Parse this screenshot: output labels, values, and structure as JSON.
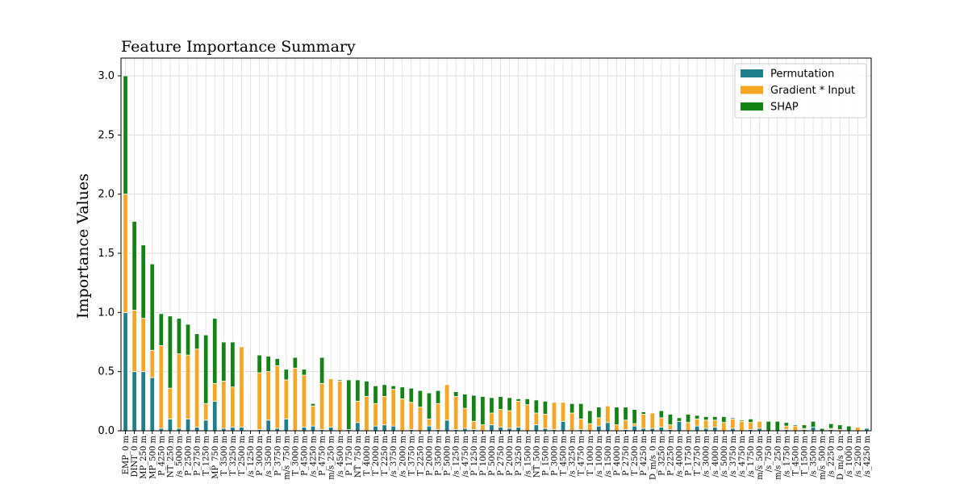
{
  "chart_data": {
    "type": "bar",
    "stacked": true,
    "title": "Feature Importance Summary",
    "ylabel": "Importance Values",
    "xlabel": "",
    "ylim": [
      0,
      3.15
    ],
    "yticks": [
      "0.0",
      "0.5",
      "1.0",
      "1.5",
      "2.0",
      "2.5",
      "3.0"
    ],
    "grid": true,
    "legend_position": "top-right",
    "categories": [
      "EMP_0 m",
      "DINT_0 m",
      "MP_250 m",
      "MP_500 m",
      "P_4250 m",
      "NT_250 m",
      "/s_5000 m",
      "P_2500 m",
      "P_2750 m",
      "T_1250 m",
      "MP_750 m",
      "T_3500 m",
      "T_3250 m",
      "T_2500 m",
      "/s_1250 m",
      "P_3000 m",
      "/s_3500 m",
      "P_3750 m",
      "m/s_750 m",
      "T_3000 m",
      "P_4500 m",
      "/s_4250 m",
      "P_4750 m",
      "m/s_250 m",
      "/s_4500 m",
      "P_1750 m",
      "NT_750 m",
      "T_4000 m",
      "T_2000 m",
      "T_2250 m",
      "/s_3750 m",
      "/s_2000 m",
      "T_3750 m",
      "T_2250 m",
      "P_2000 m",
      "P_3500 m",
      "P_5000 m",
      "/s_1250 m",
      "/s_4750 m",
      "P_1250 m",
      "P_1000 m",
      "P_5000 m",
      "P_2750 m",
      "P_2000 m",
      "P_3250 m",
      "/s_1500 m",
      "NT_500 m",
      "P_1500 m",
      "P_3000 m",
      "T_4500 m",
      "/s_3250 m",
      "T_4750 m",
      "T_1000 m",
      "/s_1000 m",
      "/s_1500 m",
      "P_4000 m",
      "P_2750 m",
      "T_2500 m",
      "P_4250 m",
      "D_m/s_0 m",
      "P_3250 m",
      "P_2250 m",
      "/s_4000 m",
      "P_1750 m",
      "T_2750 m",
      "/s_3000 m",
      "/s_4000 m",
      "/s_5000 m",
      "/s_3750 m",
      "/s_4750 m",
      "/s_1750 m",
      "m/s_500 m",
      "/s_750 m",
      "m/s_250 m",
      "/s_1750 m",
      "T_4500 m",
      "T_1500 m",
      "/s_3500 m",
      "m/s_500 m",
      "/s_2250 m",
      "D_m/s_0 m",
      "/s_1000 m",
      "/s_2500 m",
      "/s_4250 m"
    ],
    "series": [
      {
        "name": "Permutation",
        "color": "#1f7f8a",
        "values": [
          1.0,
          0.5,
          0.5,
          0.45,
          0.02,
          0.1,
          0.02,
          0.1,
          0.03,
          0.09,
          0.25,
          0.02,
          0.03,
          0.03,
          0.0,
          0.01,
          0.09,
          0.02,
          0.1,
          0.0,
          0.03,
          0.04,
          0.01,
          0.03,
          0.0,
          0.01,
          0.07,
          0.0,
          0.04,
          0.05,
          0.04,
          0.0,
          0.01,
          0.0,
          0.04,
          0.01,
          0.09,
          0.01,
          0.02,
          0.01,
          0.0,
          0.05,
          0.03,
          0.02,
          0.03,
          0.0,
          0.05,
          0.02,
          0.01,
          0.08,
          0.0,
          0.01,
          0.0,
          0.04,
          0.07,
          0.0,
          0.01,
          0.04,
          0.02,
          0.02,
          0.03,
          0.01,
          0.08,
          0.0,
          0.04,
          0.02,
          0.03,
          0.0,
          0.02,
          0.0,
          0.01,
          0.02,
          0.0,
          0.0,
          0.01,
          0.0,
          0.01,
          0.03,
          0.0,
          0.01,
          0.0,
          0.0,
          0.0,
          0.02
        ]
      },
      {
        "name": "Gradient * Input",
        "color": "#f5a623",
        "values": [
          1.0,
          0.52,
          0.45,
          0.23,
          0.7,
          0.26,
          0.63,
          0.54,
          0.66,
          0.14,
          0.15,
          0.4,
          0.34,
          0.68,
          0.0,
          0.48,
          0.41,
          0.53,
          0.33,
          0.53,
          0.44,
          0.17,
          0.39,
          0.41,
          0.42,
          0.0,
          0.18,
          0.29,
          0.19,
          0.24,
          0.31,
          0.27,
          0.23,
          0.2,
          0.06,
          0.22,
          0.3,
          0.28,
          0.17,
          0.07,
          0.05,
          0.1,
          0.15,
          0.15,
          0.22,
          0.22,
          0.1,
          0.12,
          0.23,
          0.16,
          0.15,
          0.09,
          0.06,
          0.07,
          0.14,
          0.05,
          0.08,
          0.02,
          0.12,
          0.13,
          0.08,
          0.04,
          0.0,
          0.07,
          0.06,
          0.07,
          0.06,
          0.07,
          0.08,
          0.08,
          0.06,
          0.06,
          0.0,
          0.0,
          0.03,
          0.04,
          0.01,
          0.0,
          0.0,
          0.01,
          0.01,
          0.0,
          0.03,
          0.0
        ]
      },
      {
        "name": "SHAP",
        "color": "#138313",
        "values": [
          1.0,
          0.75,
          0.62,
          0.73,
          0.27,
          0.61,
          0.3,
          0.26,
          0.13,
          0.58,
          0.55,
          0.33,
          0.38,
          0.0,
          0.0,
          0.15,
          0.13,
          0.06,
          0.09,
          0.09,
          0.05,
          0.02,
          0.22,
          0.0,
          0.01,
          0.42,
          0.18,
          0.13,
          0.15,
          0.1,
          0.03,
          0.1,
          0.12,
          0.14,
          0.22,
          0.11,
          0.0,
          0.04,
          0.12,
          0.22,
          0.24,
          0.13,
          0.11,
          0.11,
          0.02,
          0.05,
          0.11,
          0.11,
          0.0,
          0.0,
          0.08,
          0.13,
          0.11,
          0.09,
          0.0,
          0.15,
          0.11,
          0.12,
          0.02,
          0.0,
          0.06,
          0.09,
          0.03,
          0.07,
          0.03,
          0.03,
          0.03,
          0.05,
          0.01,
          0.01,
          0.03,
          0.0,
          0.08,
          0.08,
          0.03,
          0.01,
          0.03,
          0.05,
          0.02,
          0.04,
          0.04,
          0.04,
          0.0,
          0.0
        ]
      }
    ]
  }
}
